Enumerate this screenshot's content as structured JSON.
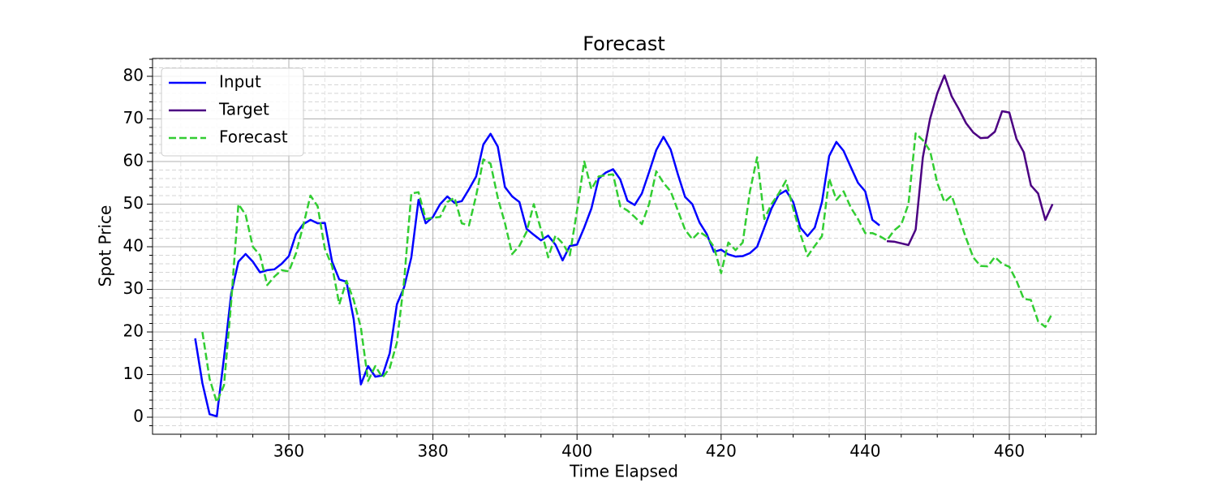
{
  "chart_data": {
    "type": "line",
    "title": "Forecast",
    "xlabel": "Time Elapsed",
    "ylabel": "Spot Price",
    "xlim": [
      341.08,
      472.05
    ],
    "ylim": [
      -4.0,
      84.19
    ],
    "xticks": [
      360,
      380,
      400,
      420,
      440,
      460
    ],
    "yticks": [
      0,
      10,
      20,
      30,
      40,
      50,
      60,
      70,
      80
    ],
    "xminorticks": [
      345,
      350,
      355,
      365,
      370,
      375,
      385,
      390,
      395,
      405,
      410,
      415,
      425,
      430,
      435,
      445,
      450,
      455,
      465,
      470
    ],
    "yminorticks": [
      -2,
      2,
      4,
      6,
      8,
      12,
      14,
      16,
      18,
      22,
      24,
      26,
      28,
      32,
      34,
      36,
      38,
      42,
      44,
      46,
      48,
      52,
      54,
      56,
      58,
      62,
      64,
      66,
      68,
      72,
      74,
      76,
      78,
      82,
      84
    ],
    "grid": true,
    "legend": "upper left",
    "series": [
      {
        "name": "Input",
        "color": "#0000ff",
        "dash": false,
        "x": [
          347,
          348,
          349,
          350,
          351,
          352,
          353,
          354,
          355,
          356,
          357,
          358,
          359,
          360,
          361,
          362,
          363,
          364,
          365,
          366,
          367,
          368,
          369,
          370,
          371,
          372,
          373,
          374,
          375,
          376,
          377,
          378,
          379,
          380,
          381,
          382,
          383,
          384,
          385,
          386,
          387,
          388,
          389,
          390,
          391,
          392,
          393,
          394,
          395,
          396,
          397,
          398,
          399,
          400,
          401,
          402,
          403,
          404,
          405,
          406,
          407,
          408,
          409,
          410,
          411,
          412,
          413,
          414,
          415,
          416,
          417,
          418,
          419,
          420,
          421,
          422,
          423,
          424,
          425,
          426,
          427,
          428,
          429,
          430,
          431,
          432,
          433,
          434,
          435,
          436,
          437,
          438,
          439,
          440,
          441,
          442
        ],
        "values": [
          18.5,
          8,
          0.7,
          0.2,
          14,
          29,
          36.5,
          38.3,
          36.5,
          34,
          34.5,
          34.7,
          36,
          37.8,
          43,
          45.3,
          46.3,
          45.5,
          45.6,
          36.5,
          32.3,
          31.8,
          23,
          7.7,
          12,
          9.5,
          9.8,
          15,
          26.5,
          30.5,
          37.5,
          51,
          45.5,
          47,
          50,
          51.8,
          50.3,
          50.7,
          53.5,
          56.5,
          64,
          66.5,
          63.5,
          54,
          51.8,
          50.5,
          44.2,
          42.8,
          41.5,
          42.6,
          40.5,
          36.8,
          40.2,
          40.5,
          44.5,
          49,
          56,
          57.4,
          58.2,
          55.8,
          50.8,
          49.8,
          52.5,
          57.5,
          62.7,
          65.8,
          62.8,
          57,
          51.7,
          50,
          45.7,
          43,
          38.8,
          39.3,
          38.2,
          37.7,
          37.8,
          38.5,
          40,
          44.5,
          49,
          52.2,
          53.2,
          50.5,
          44.5,
          42.5,
          44.5,
          50.5,
          61.3,
          64.6,
          62.5,
          58.7,
          55,
          53,
          46.3,
          45
        ]
      },
      {
        "name": "Target",
        "color": "#4b0082",
        "dash": false,
        "x": [
          443,
          444,
          445,
          446,
          447,
          448,
          449,
          450,
          451,
          452,
          453,
          454,
          455,
          456,
          457,
          458,
          459,
          460,
          461,
          462,
          463,
          464,
          465,
          466
        ],
        "values": [
          41.3,
          41.2,
          40.8,
          40.4,
          44,
          61,
          70,
          76,
          80.2,
          75.3,
          72.3,
          69,
          66.8,
          65.5,
          65.6,
          67,
          71.8,
          71.5,
          65.3,
          62.2,
          54.4,
          52.5,
          46.3,
          50
        ]
      },
      {
        "name": "Forecast",
        "color": "#32cd32",
        "dash": true,
        "x": [
          348,
          349,
          350,
          351,
          352,
          353,
          354,
          355,
          356,
          357,
          358,
          359,
          360,
          361,
          362,
          363,
          364,
          365,
          366,
          367,
          368,
          369,
          370,
          371,
          372,
          373,
          374,
          375,
          376,
          377,
          378,
          379,
          380,
          381,
          382,
          383,
          384,
          385,
          386,
          387,
          388,
          389,
          390,
          391,
          392,
          393,
          394,
          395,
          396,
          397,
          398,
          399,
          400,
          401,
          402,
          403,
          404,
          405,
          406,
          407,
          408,
          409,
          410,
          411,
          412,
          413,
          414,
          415,
          416,
          417,
          418,
          419,
          420,
          421,
          422,
          423,
          424,
          425,
          426,
          427,
          428,
          429,
          430,
          431,
          432,
          433,
          434,
          435,
          436,
          437,
          438,
          439,
          440,
          441,
          442,
          443,
          444,
          445,
          446,
          447,
          448,
          449,
          450,
          451,
          452,
          453,
          454,
          455,
          456,
          457,
          458,
          459,
          460,
          461,
          462,
          463,
          464,
          465,
          466
        ],
        "values": [
          20,
          9,
          3.5,
          7.5,
          27,
          50,
          47.5,
          40,
          38,
          31,
          33,
          34.5,
          34.2,
          38.5,
          45,
          52,
          49.5,
          39.5,
          35.5,
          26.5,
          32,
          27.5,
          21,
          8.5,
          12,
          9.3,
          11.5,
          17.5,
          32,
          52.5,
          52.8,
          46.5,
          46.8,
          47,
          50.5,
          51.5,
          45.5,
          45,
          52,
          60.5,
          59.5,
          51.5,
          45.5,
          38.3,
          40.2,
          43.5,
          50,
          44,
          37.5,
          42.6,
          40.8,
          38,
          48.5,
          60,
          53.5,
          56.5,
          56.8,
          57,
          49.5,
          48.5,
          47,
          45.3,
          50,
          57.7,
          55,
          53,
          48.5,
          44,
          41.8,
          43.5,
          42.4,
          40,
          33.8,
          41,
          39.2,
          41,
          53,
          61,
          46.5,
          50,
          52.5,
          55.5,
          49,
          43,
          37.8,
          40.2,
          42.5,
          56,
          51,
          53,
          49.2,
          46.5,
          43.2,
          43.2,
          42.5,
          41.5,
          43.8,
          45.2,
          50,
          66.6,
          65,
          62.5,
          55,
          50.5,
          52,
          47,
          42,
          37.5,
          35.5,
          35.4,
          37.6,
          36,
          35.3,
          32,
          27.8,
          27.5,
          22.5,
          21.2,
          24.5
        ]
      }
    ]
  }
}
